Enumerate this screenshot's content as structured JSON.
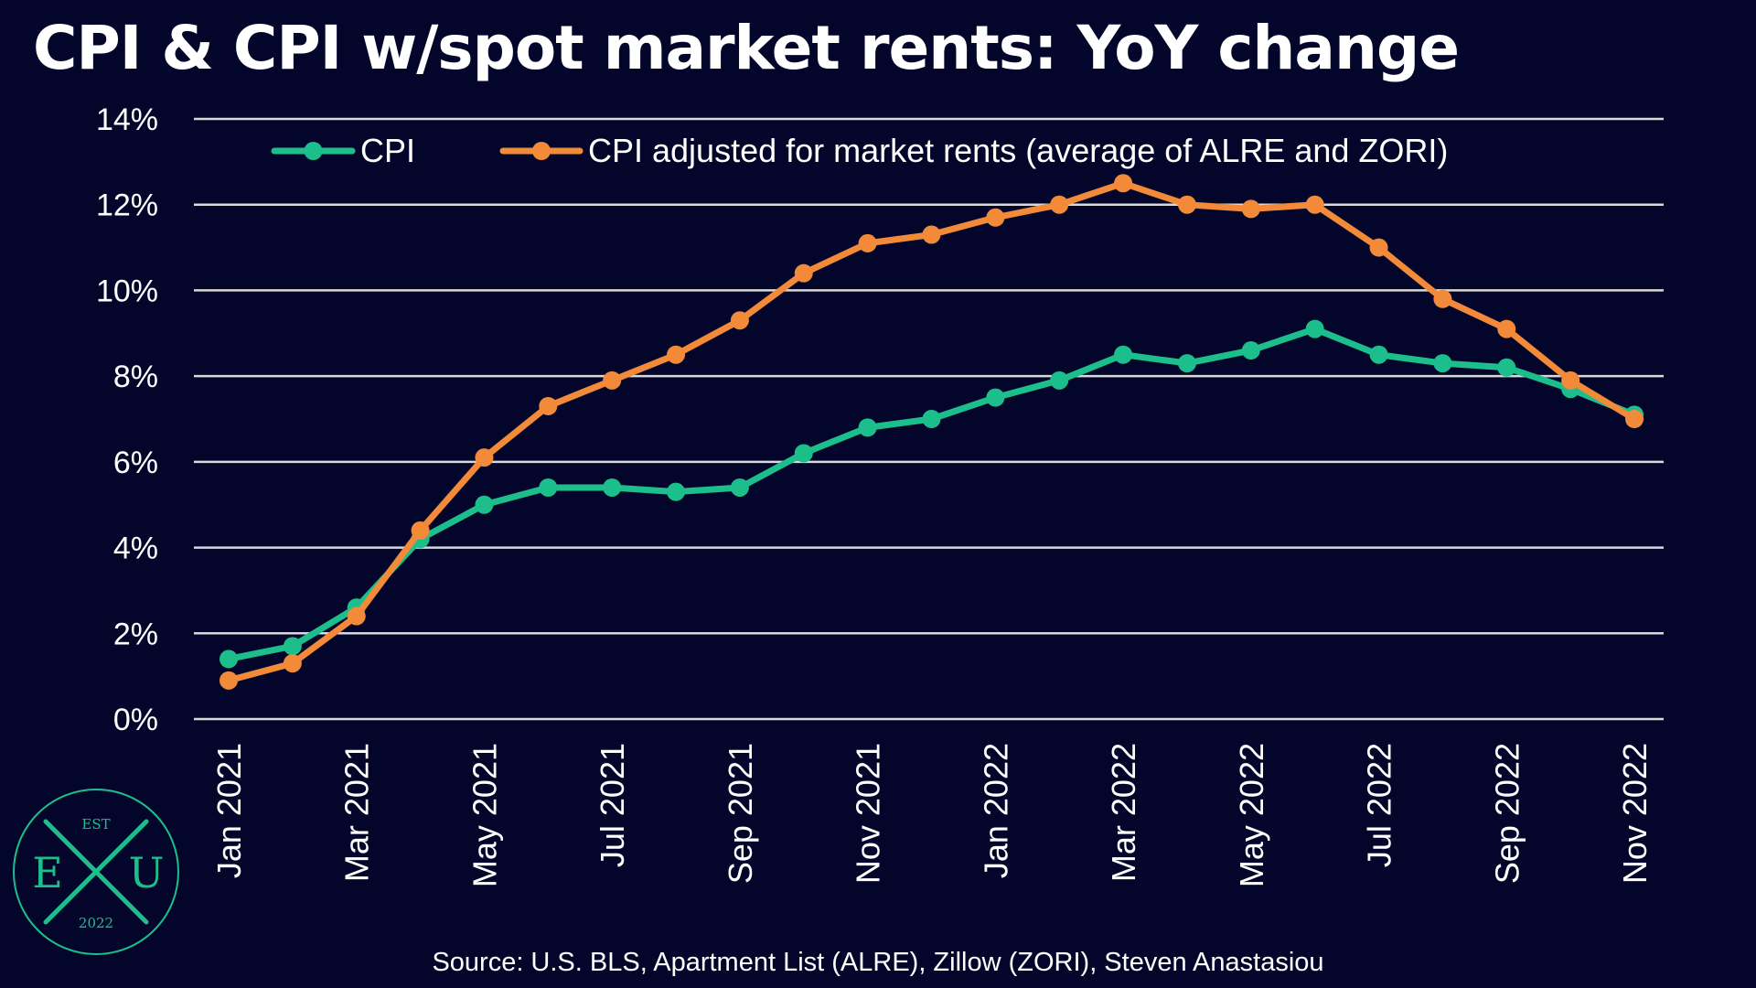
{
  "colors": {
    "background": "#03062a",
    "grid": "#d9d9d9",
    "text": "#ffffff",
    "cpi": "#1cbf8c",
    "cpi_adjusted": "#f28a3a",
    "logo": "#1cbf8c"
  },
  "footer": {
    "source": "Source: U.S. BLS, Apartment List (ALRE), Zillow (ZORI), Steven Anastasiou"
  },
  "logo": {
    "top_text": "EST",
    "left_letter": "E",
    "center_letter": "X",
    "right_letter": "U",
    "bottom_text": "2022"
  },
  "chart_data": {
    "type": "line",
    "title": "CPI & CPI w/spot market rents: YoY change",
    "xlabel": "",
    "ylabel": "",
    "ylim": [
      0,
      14
    ],
    "y_ticks": [
      0,
      2,
      4,
      6,
      8,
      10,
      12,
      14
    ],
    "y_tick_labels": [
      "0%",
      "2%",
      "4%",
      "6%",
      "8%",
      "10%",
      "12%",
      "14%"
    ],
    "grid": true,
    "legend_position": "top",
    "x": [
      "Jan 2021",
      "Feb 2021",
      "Mar 2021",
      "Apr 2021",
      "May 2021",
      "Jun 2021",
      "Jul 2021",
      "Aug 2021",
      "Sep 2021",
      "Oct 2021",
      "Nov 2021",
      "Dec 2021",
      "Jan 2022",
      "Feb 2022",
      "Mar 2022",
      "Apr 2022",
      "May 2022",
      "Jun 2022",
      "Jul 2022",
      "Aug 2022",
      "Sep 2022",
      "Oct 2022",
      "Nov 2022"
    ],
    "x_tick_labels": [
      "Jan 2021",
      "",
      "Mar 2021",
      "",
      "May 2021",
      "",
      "Jul 2021",
      "",
      "Sep 2021",
      "",
      "Nov 2021",
      "",
      "Jan 2022",
      "",
      "Mar 2022",
      "",
      "May 2022",
      "",
      "Jul 2022",
      "",
      "Sep 2022",
      "",
      "Nov 2022"
    ],
    "series": [
      {
        "name": "CPI",
        "values": [
          1.4,
          1.7,
          2.6,
          4.2,
          5.0,
          5.4,
          5.4,
          5.3,
          5.4,
          6.2,
          6.8,
          7.0,
          7.5,
          7.9,
          8.5,
          8.3,
          8.6,
          9.1,
          8.5,
          8.3,
          8.2,
          7.7,
          7.1
        ]
      },
      {
        "name": "CPI adjusted for market rents (average of ALRE and ZORI)",
        "values": [
          0.9,
          1.3,
          2.4,
          4.4,
          6.1,
          7.3,
          7.9,
          8.5,
          9.3,
          10.4,
          11.1,
          11.3,
          11.7,
          12.0,
          12.5,
          12.0,
          11.9,
          12.0,
          11.0,
          9.8,
          9.1,
          7.9,
          7.0
        ]
      }
    ]
  }
}
